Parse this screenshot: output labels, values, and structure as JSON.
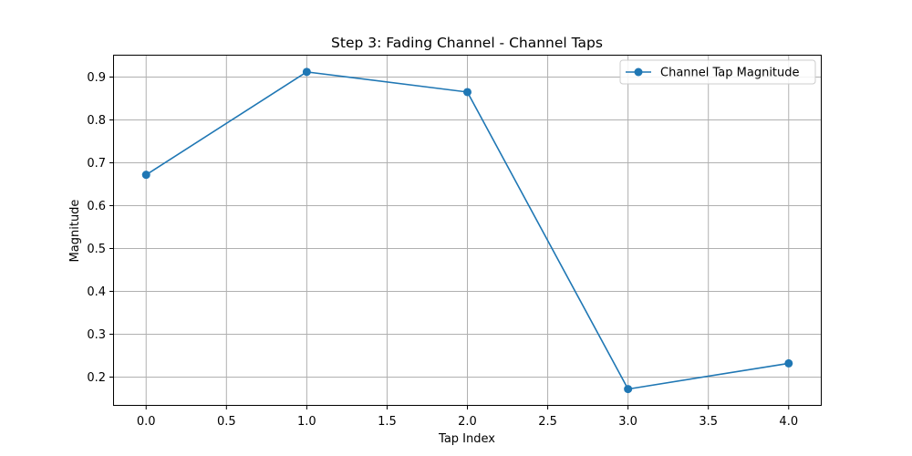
{
  "chart_data": {
    "type": "line",
    "title": "Step 3: Fading Channel - Channel Taps",
    "xlabel": "Tap Index",
    "ylabel": "Magnitude",
    "xlim": [
      -0.2,
      4.2
    ],
    "ylim": [
      0.135,
      0.95
    ],
    "xticks": [
      0.0,
      0.5,
      1.0,
      1.5,
      2.0,
      2.5,
      3.0,
      3.5,
      4.0
    ],
    "xtick_labels": [
      "0.0",
      "0.5",
      "1.0",
      "1.5",
      "2.0",
      "2.5",
      "3.0",
      "3.5",
      "4.0"
    ],
    "yticks": [
      0.2,
      0.3,
      0.4,
      0.5,
      0.6,
      0.7,
      0.8,
      0.9
    ],
    "ytick_labels": [
      "0.2",
      "0.3",
      "0.4",
      "0.5",
      "0.6",
      "0.7",
      "0.8",
      "0.9"
    ],
    "grid": true,
    "legend_position": "top-right",
    "series": [
      {
        "name": "Channel Tap Magnitude",
        "color": "#1f77b4",
        "marker": "circle",
        "x": [
          0,
          1,
          2,
          3,
          4
        ],
        "y": [
          0.672,
          0.912,
          0.865,
          0.172,
          0.232
        ]
      }
    ]
  }
}
